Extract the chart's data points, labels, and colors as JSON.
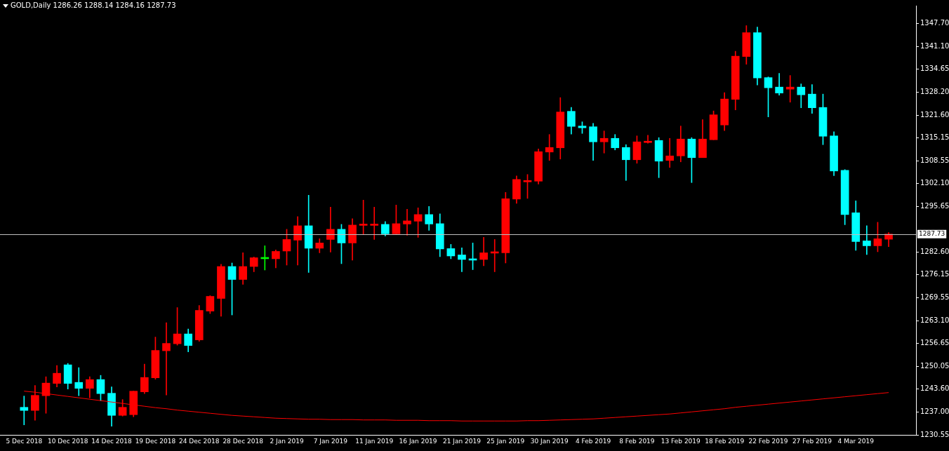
{
  "chart_data": {
    "type": "candlestick",
    "title": "GOLD,Daily 1286.26 1288.14 1284.16 1287.73",
    "categories": [
      "5 Dec 2018",
      null,
      null,
      null,
      "10 Dec 2018",
      null,
      null,
      null,
      "14 Dec 2018",
      null,
      null,
      null,
      "19 Dec 2018",
      null,
      null,
      null,
      "24 Dec 2018",
      null,
      null,
      null,
      "28 Dec 2018",
      null,
      null,
      null,
      "2 Jan 2019",
      null,
      null,
      null,
      "7 Jan 2019",
      null,
      null,
      null,
      "11 Jan 2019",
      null,
      null,
      null,
      "16 Jan 2019",
      null,
      null,
      null,
      "21 Jan 2019",
      null,
      null,
      null,
      "25 Jan 2019",
      null,
      null,
      null,
      "30 Jan 2019",
      null,
      null,
      null,
      "4 Feb 2019",
      null,
      null,
      null,
      "8 Feb 2019",
      null,
      null,
      null,
      "13 Feb 2019",
      null,
      null,
      null,
      "18 Feb 2019",
      null,
      null,
      null,
      "22 Feb 2019",
      null,
      null,
      null,
      "27 Feb 2019",
      null,
      null,
      null,
      "4 Mar 2019",
      null,
      null,
      null
    ],
    "ohlc": [
      [
        1238.4,
        1241.6,
        1233.4,
        1237.5
      ],
      [
        1237.5,
        1244.6,
        1234.7,
        1241.8
      ],
      [
        1241.7,
        1247.1,
        1236.7,
        1245.3
      ],
      [
        1245.2,
        1250.3,
        1244.2,
        1248.1
      ],
      [
        1250.5,
        1250.9,
        1243.6,
        1245.2
      ],
      [
        1245.5,
        1249.7,
        1241.7,
        1243.8
      ],
      [
        1243.8,
        1247.1,
        1241.1,
        1246.3
      ],
      [
        1246.3,
        1247.5,
        1240.3,
        1242.3
      ],
      [
        1242.4,
        1244.2,
        1233.0,
        1236.1
      ],
      [
        1236.1,
        1240.6,
        1235.9,
        1238.4
      ],
      [
        1236.3,
        1243.0,
        1235.7,
        1243.0
      ],
      [
        1242.8,
        1250.7,
        1242.3,
        1246.9
      ],
      [
        1246.8,
        1258.4,
        1246.4,
        1254.6
      ],
      [
        1254.5,
        1262.5,
        1241.9,
        1256.6
      ],
      [
        1256.5,
        1266.8,
        1256.1,
        1259.3
      ],
      [
        1259.3,
        1260.7,
        1254.2,
        1256.0
      ],
      [
        1257.6,
        1267.4,
        1257.2,
        1266.0
      ],
      [
        1265.8,
        1270.2,
        1265.1,
        1270.0
      ],
      [
        1269.4,
        1279.1,
        1264.3,
        1278.5
      ],
      [
        1278.5,
        1279.5,
        1264.7,
        1274.8
      ],
      [
        1274.8,
        1282.4,
        1273.4,
        1278.5
      ],
      [
        1278.5,
        1281.2,
        1277.0,
        1281.0
      ],
      [
        1280.7,
        1284.4,
        1277.5,
        1280.9
      ],
      [
        1280.7,
        1283.2,
        1278.1,
        1282.8
      ],
      [
        1282.9,
        1289.1,
        1278.9,
        1286.2
      ],
      [
        1286.0,
        1292.7,
        1278.9,
        1290.1
      ],
      [
        1290.1,
        1298.8,
        1276.8,
        1283.7
      ],
      [
        1283.7,
        1286.4,
        1282.4,
        1285.2
      ],
      [
        1286.2,
        1295.4,
        1282.6,
        1289.1
      ],
      [
        1289.1,
        1290.5,
        1279.3,
        1285.2
      ],
      [
        1285.2,
        1292.1,
        1280.3,
        1290.3
      ],
      [
        1290.2,
        1297.4,
        1287.7,
        1290.3
      ],
      [
        1290.2,
        1295.4,
        1286.2,
        1290.5
      ],
      [
        1290.5,
        1291.3,
        1287.2,
        1287.8
      ],
      [
        1287.8,
        1296.0,
        1287.8,
        1290.7
      ],
      [
        1290.6,
        1294.8,
        1287.4,
        1291.5
      ],
      [
        1291.4,
        1295.2,
        1286.8,
        1293.3
      ],
      [
        1293.3,
        1295.6,
        1288.8,
        1290.6
      ],
      [
        1290.7,
        1293.5,
        1281.3,
        1283.5
      ],
      [
        1283.6,
        1284.8,
        1280.7,
        1281.5
      ],
      [
        1281.8,
        1283.8,
        1277.0,
        1280.5
      ],
      [
        1280.6,
        1285.2,
        1277.6,
        1280.3
      ],
      [
        1280.5,
        1286.8,
        1278.7,
        1282.4
      ],
      [
        1282.3,
        1286.2,
        1277.0,
        1282.6
      ],
      [
        1282.4,
        1299.6,
        1279.5,
        1297.8
      ],
      [
        1297.7,
        1304.3,
        1296.5,
        1303.3
      ],
      [
        1302.6,
        1304.7,
        1297.9,
        1302.9
      ],
      [
        1302.8,
        1312.0,
        1302.0,
        1311.2
      ],
      [
        1311.1,
        1316.1,
        1308.7,
        1312.4
      ],
      [
        1312.3,
        1326.6,
        1309.1,
        1322.5
      ],
      [
        1322.7,
        1323.8,
        1316.2,
        1318.4
      ],
      [
        1318.5,
        1319.7,
        1316.4,
        1318.0
      ],
      [
        1318.3,
        1319.3,
        1308.7,
        1314.0
      ],
      [
        1314.0,
        1317.1,
        1310.8,
        1315.0
      ],
      [
        1315.0,
        1316.1,
        1311.7,
        1312.3
      ],
      [
        1312.4,
        1313.2,
        1303.0,
        1308.9
      ],
      [
        1308.9,
        1315.7,
        1307.9,
        1314.0
      ],
      [
        1313.8,
        1315.9,
        1313.6,
        1314.2
      ],
      [
        1314.4,
        1315.2,
        1303.8,
        1308.5
      ],
      [
        1308.7,
        1315.0,
        1306.7,
        1310.0
      ],
      [
        1310.0,
        1318.5,
        1308.3,
        1314.8
      ],
      [
        1314.8,
        1315.2,
        1302.4,
        1309.5
      ],
      [
        1309.5,
        1320.3,
        1309.5,
        1314.8
      ],
      [
        1314.6,
        1322.8,
        1314.6,
        1321.7
      ],
      [
        1318.8,
        1328.0,
        1317.2,
        1326.2
      ],
      [
        1326.1,
        1339.8,
        1323.1,
        1338.4
      ],
      [
        1338.3,
        1347.1,
        1336.1,
        1345.1
      ],
      [
        1345.1,
        1346.7,
        1330.2,
        1332.2
      ],
      [
        1332.3,
        1332.5,
        1321.1,
        1329.4
      ],
      [
        1329.6,
        1333.5,
        1327.3,
        1327.9
      ],
      [
        1329.0,
        1332.9,
        1325.3,
        1329.6
      ],
      [
        1329.6,
        1330.5,
        1323.7,
        1327.4
      ],
      [
        1327.6,
        1330.3,
        1322.1,
        1323.7
      ],
      [
        1323.8,
        1327.6,
        1313.2,
        1315.6
      ],
      [
        1315.7,
        1316.9,
        1304.4,
        1305.7
      ],
      [
        1305.9,
        1306.1,
        1290.4,
        1293.3
      ],
      [
        1293.8,
        1297.2,
        1283.1,
        1285.6
      ],
      [
        1285.8,
        1290.1,
        1281.9,
        1284.4
      ],
      [
        1284.4,
        1291.1,
        1282.7,
        1286.4
      ],
      [
        1286.26,
        1288.14,
        1284.16,
        1287.73
      ]
    ],
    "colors": [
      "#00ffff",
      "#ff0000",
      "#ff0000",
      "#ff0000",
      "#00ffff",
      "#00ffff",
      "#ff0000",
      "#00ffff",
      "#00ffff",
      "#ff0000",
      "#ff0000",
      "#ff0000",
      "#ff0000",
      "#ff0000",
      "#ff0000",
      "#00ffff",
      "#ff0000",
      "#ff0000",
      "#ff0000",
      "#00ffff",
      "#ff0000",
      "#ff0000",
      "#00ff00",
      "#ff0000",
      "#ff0000",
      "#ff0000",
      "#00ffff",
      "#ff0000",
      "#ff0000",
      "#00ffff",
      "#ff0000",
      "#ff0000",
      "#ff0000",
      "#00ffff",
      "#ff0000",
      "#ff0000",
      "#ff0000",
      "#00ffff",
      "#00ffff",
      "#00ffff",
      "#00ffff",
      "#00ffff",
      "#ff0000",
      "#ff0000",
      "#ff0000",
      "#ff0000",
      "#ff0000",
      "#ff0000",
      "#ff0000",
      "#ff0000",
      "#00ffff",
      "#00ffff",
      "#00ffff",
      "#ff0000",
      "#00ffff",
      "#00ffff",
      "#ff0000",
      "#ff0000",
      "#00ffff",
      "#ff0000",
      "#ff0000",
      "#00ffff",
      "#ff0000",
      "#ff0000",
      "#ff0000",
      "#ff0000",
      "#ff0000",
      "#00ffff",
      "#00ffff",
      "#00ffff",
      "#ff0000",
      "#00ffff",
      "#00ffff",
      "#00ffff",
      "#00ffff",
      "#00ffff",
      "#00ffff",
      "#00ffff",
      "#ff0000",
      "#ff0000"
    ],
    "series": [
      {
        "type": "line",
        "color": "#ff0000",
        "values": [
          1243.0,
          1242.7,
          1242.3,
          1241.9,
          1241.5,
          1241.1,
          1240.7,
          1240.3,
          1239.9,
          1239.5,
          1239.1,
          1238.7,
          1238.3,
          1238.0,
          1237.6,
          1237.3,
          1237.0,
          1236.7,
          1236.4,
          1236.1,
          1235.9,
          1235.7,
          1235.5,
          1235.3,
          1235.2,
          1235.1,
          1235.0,
          1235.0,
          1234.9,
          1234.9,
          1234.9,
          1234.8,
          1234.8,
          1234.8,
          1234.7,
          1234.7,
          1234.7,
          1234.6,
          1234.6,
          1234.6,
          1234.5,
          1234.5,
          1234.5,
          1234.5,
          1234.5,
          1234.5,
          1234.6,
          1234.6,
          1234.7,
          1234.8,
          1234.9,
          1235.0,
          1235.1,
          1235.3,
          1235.5,
          1235.7,
          1235.9,
          1236.1,
          1236.3,
          1236.5,
          1236.8,
          1237.1,
          1237.4,
          1237.7,
          1238.0,
          1238.4,
          1238.7,
          1239.0,
          1239.3,
          1239.6,
          1239.9,
          1240.2,
          1240.5,
          1240.8,
          1241.1,
          1241.4,
          1241.7,
          1242.0,
          1242.3,
          1242.6
        ]
      }
    ],
    "ylim": [
      1230.55,
      1352.8
    ],
    "yticks": [
      {
        "value": 1347.7,
        "label": "1347.70"
      },
      {
        "value": 1341.1,
        "label": "1341.10"
      },
      1334.65,
      {
        "value": 1328.2,
        "label": "1328.20"
      },
      {
        "value": 1321.6,
        "label": "1321.60"
      },
      1315.15,
      1308.55,
      {
        "value": 1302.1,
        "label": "1302.10"
      },
      1295.65,
      {
        "value": 1282.6,
        "label": "1282.60"
      },
      1276.15,
      1269.55,
      {
        "value": 1263.1,
        "label": "1263.10"
      },
      1256.65,
      1250.05,
      {
        "value": 1243.6,
        "label": "1243.60"
      },
      {
        "value": 1237.0,
        "label": "1237.00"
      },
      1230.55
    ],
    "ref_lines": [
      {
        "axis": "y",
        "value": 1287.73,
        "label": "1287.73",
        "color": "#c0c0c0"
      }
    ],
    "grid": false,
    "legend": false
  }
}
